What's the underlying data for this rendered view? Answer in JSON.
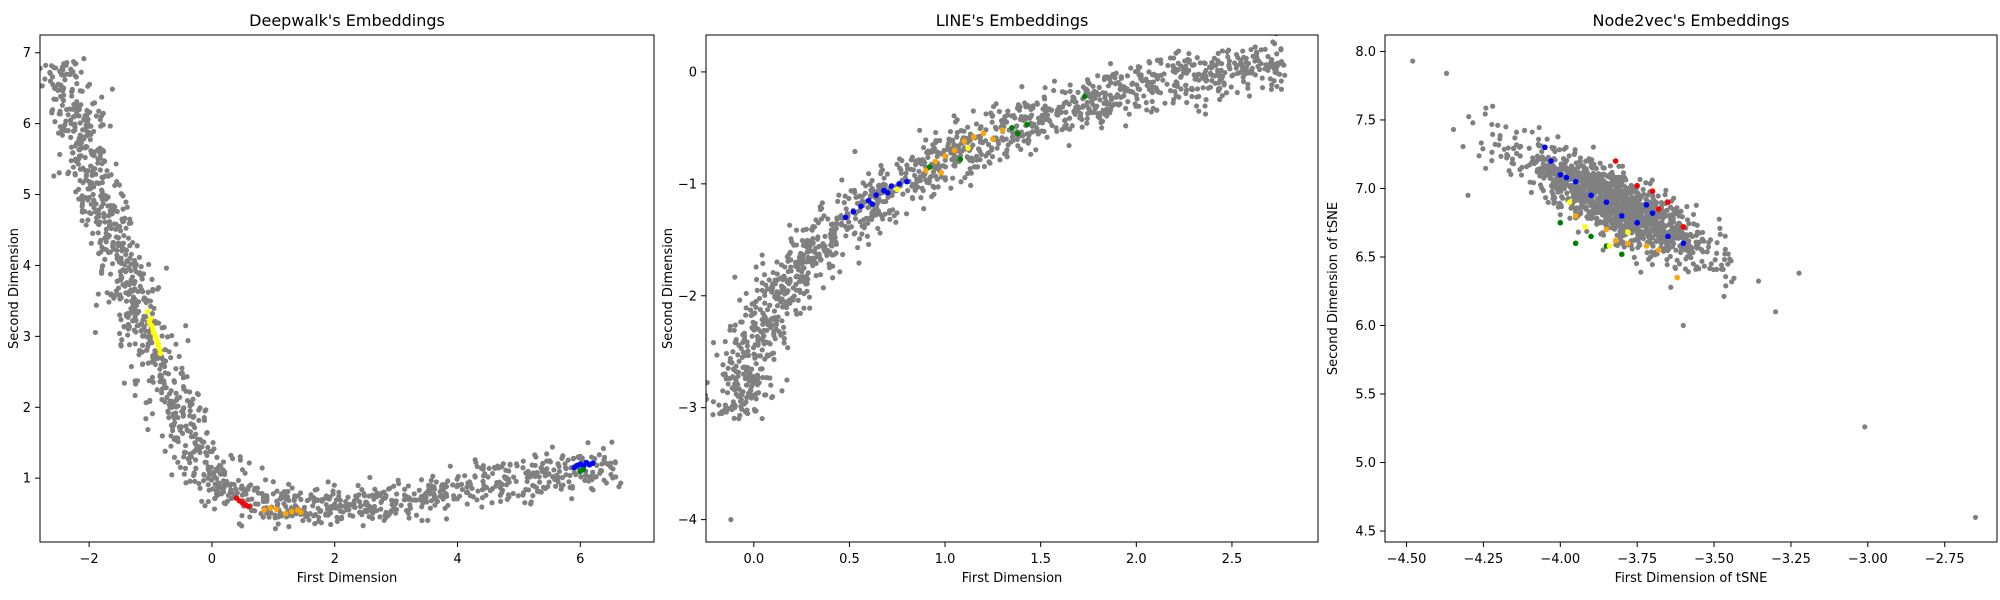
{
  "chart_data": [
    {
      "type": "scatter",
      "title": "Deepwalk's Embeddings",
      "xlabel": "First Dimension",
      "ylabel": "Second Dimension",
      "xlim": [
        -2.8,
        7.2
      ],
      "ylim": [
        0.1,
        7.25
      ],
      "xticks": [
        -2,
        0,
        2,
        4,
        6
      ],
      "yticks": [
        1,
        2,
        3,
        4,
        5,
        6,
        7
      ],
      "grid": false,
      "series": [
        {
          "color": "#808080",
          "shape": "polyline-band",
          "path": [
            [
              -2.45,
              6.9
            ],
            [
              -2.4,
              6.6
            ],
            [
              -2.2,
              6.0
            ],
            [
              -1.9,
              5.2
            ],
            [
              -1.55,
              4.3
            ],
            [
              -1.2,
              3.4
            ],
            [
              -0.85,
              2.6
            ],
            [
              -0.55,
              1.9
            ],
            [
              -0.25,
              1.3
            ],
            [
              0.05,
              0.95
            ],
            [
              0.5,
              0.72
            ],
            [
              1.2,
              0.6
            ],
            [
              2.0,
              0.6
            ],
            [
              3.0,
              0.65
            ],
            [
              4.0,
              0.82
            ],
            [
              5.0,
              1.0
            ],
            [
              6.0,
              1.13
            ],
            [
              6.6,
              1.2
            ]
          ],
          "spread": 0.06,
          "count": 1400,
          "extra_points": [
            [
              0.3,
              0.8
            ],
            [
              0.6,
              0.88
            ],
            [
              1.0,
              0.95
            ],
            [
              1.4,
              0.75
            ],
            [
              0.2,
              0.65
            ],
            [
              2.5,
              0.55
            ],
            [
              3.2,
              0.7
            ],
            [
              0.8,
              0.5
            ],
            [
              1.6,
              0.5
            ],
            [
              0.1,
              1.1
            ]
          ]
        },
        {
          "color": "#ffff00",
          "points": [
            [
              -1.05,
              3.35
            ],
            [
              -1.0,
              3.25
            ],
            [
              -0.98,
              3.15
            ],
            [
              -0.95,
              3.05
            ],
            [
              -0.92,
              3.0
            ],
            [
              -0.9,
              2.95
            ],
            [
              -0.88,
              2.88
            ],
            [
              -0.85,
              2.82
            ],
            [
              -0.84,
              2.76
            ],
            [
              -1.02,
              3.2
            ],
            [
              -0.96,
              3.1
            ],
            [
              -0.87,
              2.9
            ]
          ]
        },
        {
          "color": "#ff0000",
          "points": [
            [
              0.4,
              0.72
            ],
            [
              0.45,
              0.68
            ],
            [
              0.5,
              0.65
            ],
            [
              0.55,
              0.62
            ],
            [
              0.6,
              0.6
            ]
          ]
        },
        {
          "color": "#ffa500",
          "points": [
            [
              0.85,
              0.55
            ],
            [
              0.95,
              0.58
            ],
            [
              1.05,
              0.56
            ],
            [
              1.2,
              0.5
            ],
            [
              1.3,
              0.53
            ],
            [
              1.4,
              0.55
            ],
            [
              1.45,
              0.52
            ]
          ]
        },
        {
          "color": "#0000ff",
          "points": [
            [
              5.9,
              1.15
            ],
            [
              5.95,
              1.18
            ],
            [
              6.0,
              1.2
            ],
            [
              6.05,
              1.17
            ],
            [
              6.1,
              1.22
            ],
            [
              6.15,
              1.19
            ],
            [
              6.2,
              1.21
            ]
          ]
        },
        {
          "color": "#008000",
          "points": [
            [
              6.0,
              1.1
            ],
            [
              6.05,
              1.12
            ]
          ]
        }
      ]
    },
    {
      "type": "scatter",
      "title": "LINE's Embeddings",
      "xlabel": "First Dimension",
      "ylabel": "Second Dimension",
      "xlim": [
        -0.25,
        2.95
      ],
      "ylim": [
        -4.2,
        0.33
      ],
      "xticks": [
        0.0,
        0.5,
        1.0,
        1.5,
        2.0,
        2.5
      ],
      "yticks": [
        0,
        -1,
        -2,
        -3,
        -4
      ],
      "grid": false,
      "series": [
        {
          "color": "#808080",
          "shape": "polyline-band",
          "path": [
            [
              -0.08,
              -3.1
            ],
            [
              -0.05,
              -2.7
            ],
            [
              0.0,
              -2.4
            ],
            [
              0.1,
              -2.05
            ],
            [
              0.25,
              -1.75
            ],
            [
              0.4,
              -1.45
            ],
            [
              0.6,
              -1.15
            ],
            [
              0.8,
              -0.95
            ],
            [
              1.0,
              -0.78
            ],
            [
              1.2,
              -0.62
            ],
            [
              1.4,
              -0.48
            ],
            [
              1.6,
              -0.35
            ],
            [
              1.8,
              -0.24
            ],
            [
              2.0,
              -0.14
            ],
            [
              2.2,
              -0.06
            ],
            [
              2.4,
              0.0
            ],
            [
              2.6,
              0.05
            ],
            [
              2.78,
              0.06
            ]
          ],
          "spread": 0.07,
          "count": 1400,
          "extra_points": [
            [
              -0.12,
              -4.0
            ],
            [
              -0.1,
              -3.0
            ],
            [
              -0.06,
              -2.55
            ]
          ]
        },
        {
          "color": "#0000ff",
          "points": [
            [
              0.48,
              -1.3
            ],
            [
              0.52,
              -1.25
            ],
            [
              0.56,
              -1.2
            ],
            [
              0.6,
              -1.15
            ],
            [
              0.64,
              -1.1
            ],
            [
              0.68,
              -1.06
            ],
            [
              0.72,
              -1.02
            ],
            [
              0.76,
              -1.0
            ],
            [
              0.8,
              -0.98
            ],
            [
              0.62,
              -1.18
            ],
            [
              0.7,
              -1.08
            ]
          ]
        },
        {
          "color": "#ffa500",
          "points": [
            [
              0.9,
              -0.88
            ],
            [
              0.95,
              -0.8
            ],
            [
              1.0,
              -0.75
            ],
            [
              1.05,
              -0.7
            ],
            [
              1.1,
              -0.62
            ],
            [
              1.15,
              -0.58
            ],
            [
              1.2,
              -0.55
            ],
            [
              1.25,
              -0.6
            ],
            [
              1.3,
              -0.52
            ],
            [
              0.98,
              -0.9
            ]
          ]
        },
        {
          "color": "#008000",
          "points": [
            [
              0.92,
              -0.85
            ],
            [
              1.08,
              -0.78
            ],
            [
              1.35,
              -0.5
            ],
            [
              1.38,
              -0.55
            ],
            [
              1.43,
              -0.47
            ],
            [
              1.73,
              -0.22
            ]
          ]
        },
        {
          "color": "#ffff00",
          "points": [
            [
              0.75,
              -1.05
            ],
            [
              1.12,
              -0.68
            ]
          ]
        }
      ]
    },
    {
      "type": "scatter",
      "title": "Node2vec's Embeddings",
      "xlabel": "First Dimension of tSNE",
      "ylabel": "Second Dimension of tSNE",
      "xlim": [
        -4.57,
        -2.58
      ],
      "ylim": [
        4.42,
        8.12
      ],
      "xticks": [
        -4.5,
        -4.25,
        -4.0,
        -3.75,
        -3.5,
        -3.25,
        -3.0,
        -2.75
      ],
      "yticks": [
        4.5,
        5.0,
        5.5,
        6.0,
        6.5,
        7.0,
        7.5,
        8.0
      ],
      "grid": false,
      "series": [
        {
          "color": "#808080",
          "shape": "ellipse-cloud",
          "center": [
            -3.82,
            6.88
          ],
          "count": 1300,
          "extra_points": [
            [
              -4.48,
              7.93
            ],
            [
              -4.37,
              7.84
            ],
            [
              -3.01,
              5.26
            ],
            [
              -2.65,
              4.6
            ],
            [
              -3.6,
              6.0
            ],
            [
              -3.3,
              6.1
            ],
            [
              -4.3,
              6.95
            ],
            [
              -4.22,
              7.6
            ]
          ]
        },
        {
          "color": "#0000ff",
          "points": [
            [
              -4.05,
              7.3
            ],
            [
              -4.03,
              7.2
            ],
            [
              -4.0,
              7.1
            ],
            [
              -3.98,
              7.08
            ],
            [
              -3.95,
              7.05
            ],
            [
              -3.9,
              6.95
            ],
            [
              -3.85,
              6.9
            ],
            [
              -3.8,
              6.8
            ],
            [
              -3.75,
              6.75
            ],
            [
              -3.7,
              6.82
            ],
            [
              -3.65,
              6.65
            ],
            [
              -3.6,
              6.6
            ],
            [
              -3.72,
              6.88
            ]
          ]
        },
        {
          "color": "#ff0000",
          "points": [
            [
              -3.82,
              7.2
            ],
            [
              -3.75,
              7.02
            ],
            [
              -3.7,
              6.98
            ],
            [
              -3.65,
              6.9
            ],
            [
              -3.6,
              6.72
            ],
            [
              -3.68,
              6.85
            ]
          ]
        },
        {
          "color": "#ffa500",
          "points": [
            [
              -3.95,
              6.8
            ],
            [
              -3.85,
              6.7
            ],
            [
              -3.78,
              6.6
            ],
            [
              -3.72,
              6.58
            ],
            [
              -3.68,
              6.55
            ],
            [
              -3.62,
              6.35
            ],
            [
              -3.82,
              6.62
            ]
          ]
        },
        {
          "color": "#008000",
          "points": [
            [
              -4.0,
              6.75
            ],
            [
              -3.95,
              6.6
            ],
            [
              -3.9,
              6.65
            ],
            [
              -3.85,
              6.58
            ],
            [
              -3.8,
              6.52
            ]
          ]
        },
        {
          "color": "#ffff00",
          "points": [
            [
              -3.97,
              6.9
            ],
            [
              -3.92,
              6.72
            ],
            [
              -3.84,
              6.58
            ],
            [
              -3.78,
              6.68
            ]
          ]
        }
      ]
    }
  ]
}
